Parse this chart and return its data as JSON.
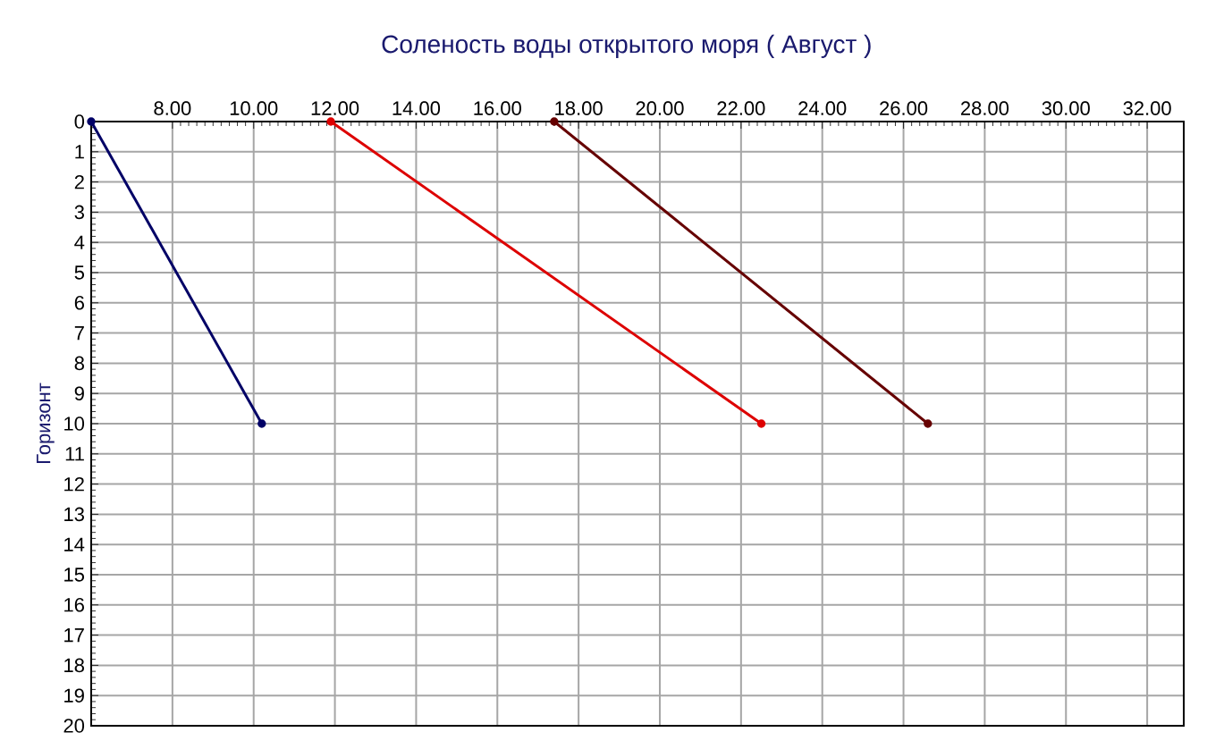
{
  "chart_data": {
    "type": "line",
    "title": "Соленость воды открытого моря    ( Август )",
    "ylabel": "Горизонт",
    "series": [
      {
        "color": "#000066",
        "x": [
          6.0,
          10.2
        ],
        "values": [
          0,
          10
        ]
      },
      {
        "color": "#dd0000",
        "x": [
          11.9,
          22.5
        ],
        "values": [
          0,
          10
        ]
      },
      {
        "color": "#660000",
        "x": [
          17.4,
          26.6
        ],
        "values": [
          0,
          10
        ]
      }
    ],
    "xlim": [
      6,
      32.9
    ],
    "ylim": [
      20,
      0
    ],
    "xticks": [
      {
        "value": 8,
        "label": "8.00"
      },
      {
        "value": 10,
        "label": "10.00"
      },
      {
        "value": 12,
        "label": "12.00"
      },
      {
        "value": 14,
        "label": "14.00"
      },
      {
        "value": 16,
        "label": "16.00"
      },
      {
        "value": 18,
        "label": "18.00"
      },
      {
        "value": 20,
        "label": "20.00"
      },
      {
        "value": 22,
        "label": "22.00"
      },
      {
        "value": 24,
        "label": "24.00"
      },
      {
        "value": 26,
        "label": "26.00"
      },
      {
        "value": 28,
        "label": "28.00"
      },
      {
        "value": 30,
        "label": "30.00"
      },
      {
        "value": 32,
        "label": "32.00"
      }
    ],
    "yticks": [
      0,
      1,
      2,
      3,
      4,
      5,
      6,
      7,
      8,
      9,
      10,
      11,
      12,
      13,
      14,
      15,
      16,
      17,
      18,
      19,
      20
    ],
    "grid": true,
    "marker": "circle",
    "line_style": "solid"
  }
}
